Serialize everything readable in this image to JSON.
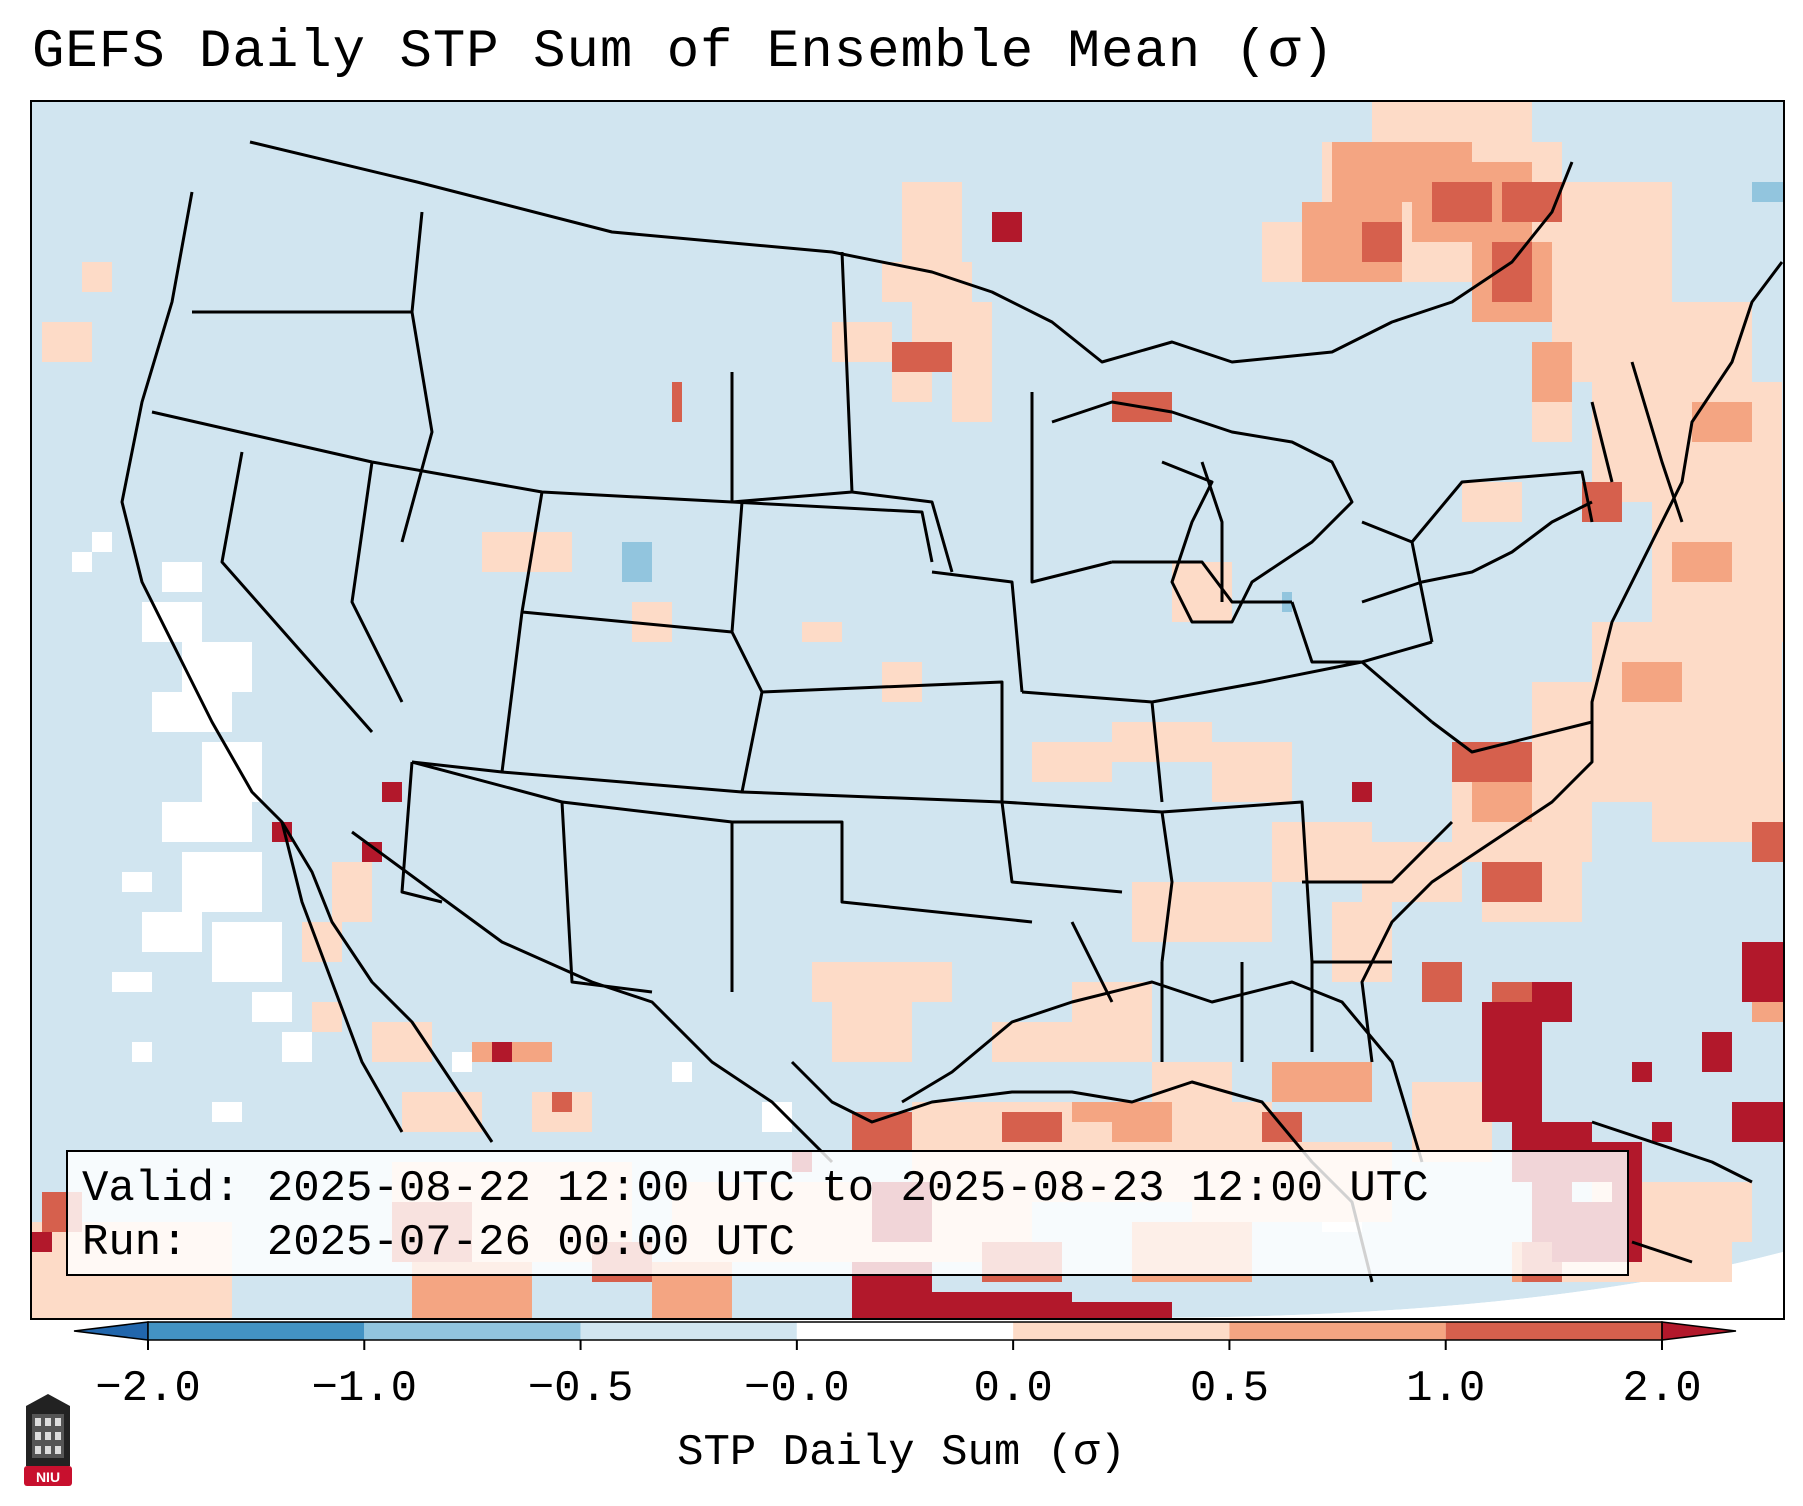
{
  "title": "GEFS Daily STP Sum of Ensemble Mean (σ)",
  "info": {
    "valid_line": "Valid: 2025-08-22 12:00 UTC to 2025-08-23 12:00 UTC",
    "run_line": "Run:   2025-07-26 00:00 UTC"
  },
  "colorbar": {
    "label": "STP Daily Sum (σ)",
    "ticks": [
      "−2.0",
      "−1.0",
      "−0.5",
      "−0.0",
      "0.0",
      "0.5",
      "1.0",
      "2.0"
    ],
    "bins": [
      {
        "range": "<-2.0",
        "color": "#2166ac"
      },
      {
        "range": "-2.0 to -1.0",
        "color": "#4393c3"
      },
      {
        "range": "-1.0 to -0.5",
        "color": "#92c5de"
      },
      {
        "range": "-0.5 to -0.0",
        "color": "#d1e5f0"
      },
      {
        "range": "-0.0 to 0.0",
        "color": "#ffffff"
      },
      {
        "range": "0.0 to 0.5",
        "color": "#fddbc7"
      },
      {
        "range": "0.5 to 1.0",
        "color": "#f4a582"
      },
      {
        "range": "1.0 to 2.0",
        "color": "#d6604d"
      },
      {
        "range": ">2.0",
        "color": "#b2182b"
      }
    ]
  },
  "map": {
    "background_color": "#d1e5f0",
    "outline_color": "#000000"
  },
  "logo": {
    "text": "NIU",
    "color": "#c8102e"
  }
}
